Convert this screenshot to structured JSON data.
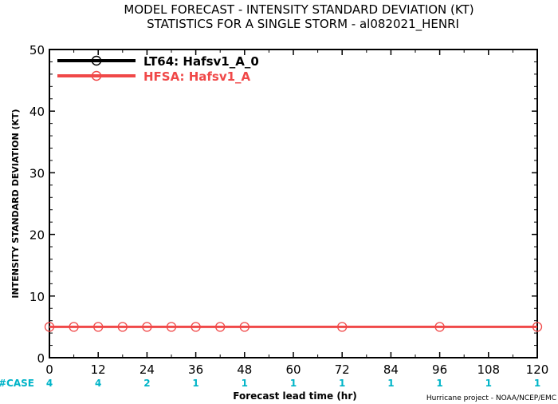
{
  "chart_data": {
    "type": "line",
    "title": "MODEL FORECAST - INTENSITY STANDARD DEVIATION (KT)",
    "subtitle": "STATISTICS FOR A SINGLE STORM - al082021_HENRI",
    "xlabel": "Forecast lead time (hr)",
    "ylabel": "INTENSITY STANDARD DEVIATION (KT)",
    "xlim": [
      0,
      120
    ],
    "ylim": [
      0,
      50
    ],
    "x_ticks": [
      0,
      12,
      24,
      36,
      48,
      60,
      72,
      84,
      96,
      108,
      120
    ],
    "y_ticks": [
      0,
      10,
      20,
      30,
      40,
      50
    ],
    "grid": false,
    "legend_position": "top-left",
    "series": [
      {
        "name": "LT64: Hafsv1_A_0",
        "color": "#000000",
        "x": [],
        "values": []
      },
      {
        "name": "HFSA: Hafsv1_A",
        "color": "#f04848",
        "x": [
          0,
          6,
          12,
          18,
          24,
          30,
          36,
          42,
          48,
          72,
          96,
          120
        ],
        "values": [
          5,
          5,
          5,
          5,
          5,
          5,
          5,
          5,
          5,
          5,
          5,
          5
        ]
      }
    ],
    "case_label": "#CASE",
    "case_counts": {
      "x": [
        0,
        12,
        24,
        36,
        48,
        60,
        72,
        84,
        96,
        108,
        120
      ],
      "values": [
        "4",
        "4",
        "2",
        "1",
        "1",
        "1",
        "1",
        "1",
        "1",
        "1",
        "1"
      ],
      "color": "#00b4c8"
    },
    "credit": "Hurricane project - NOAA/NCEP/EMC"
  }
}
